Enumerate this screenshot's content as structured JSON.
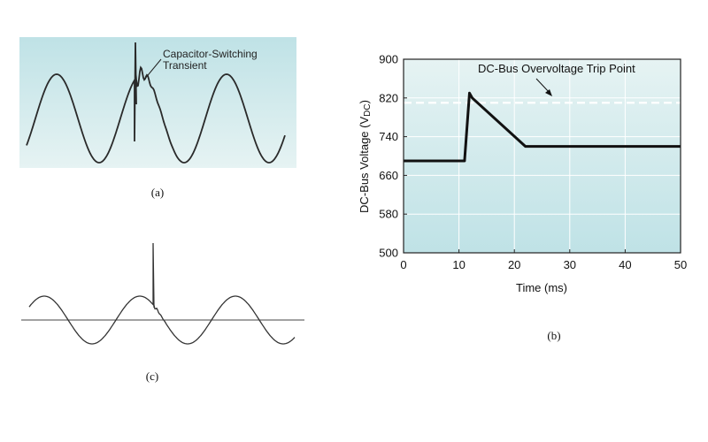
{
  "colors": {
    "panel_top": "#bfe2e6",
    "panel_bottom": "#e6f3f3",
    "trace": "#2a2a2a",
    "grid": "#ffffff",
    "trip_line": "#ffffff"
  },
  "captions": {
    "a": "(a)",
    "b": "(b)",
    "c": "(c)"
  },
  "panel_a": {
    "annotation_line1": "Capacitor-Switching",
    "annotation_line2": "Transient"
  },
  "chart_data": {
    "type": "line",
    "annotation": "DC-Bus Overvoltage Trip Point",
    "trip_level": 810,
    "xlabel": "Time (ms)",
    "ylabel": "DC-Bus Voltage (VDC)",
    "ylabel_main": "DC-Bus Voltage (V",
    "ylabel_sub": "DC",
    "ylabel_end": ")",
    "xlim": [
      0,
      50
    ],
    "ylim": [
      500,
      900
    ],
    "x_ticks": [
      "0",
      "10",
      "20",
      "30",
      "40",
      "50"
    ],
    "y_ticks": [
      "500",
      "580",
      "660",
      "740",
      "820",
      "900"
    ],
    "grid": true,
    "series": [
      {
        "x": [
          0,
          11,
          11.9,
          12.4,
          22,
          50
        ],
        "y": [
          690,
          690,
          830,
          820,
          720,
          720
        ]
      }
    ]
  }
}
